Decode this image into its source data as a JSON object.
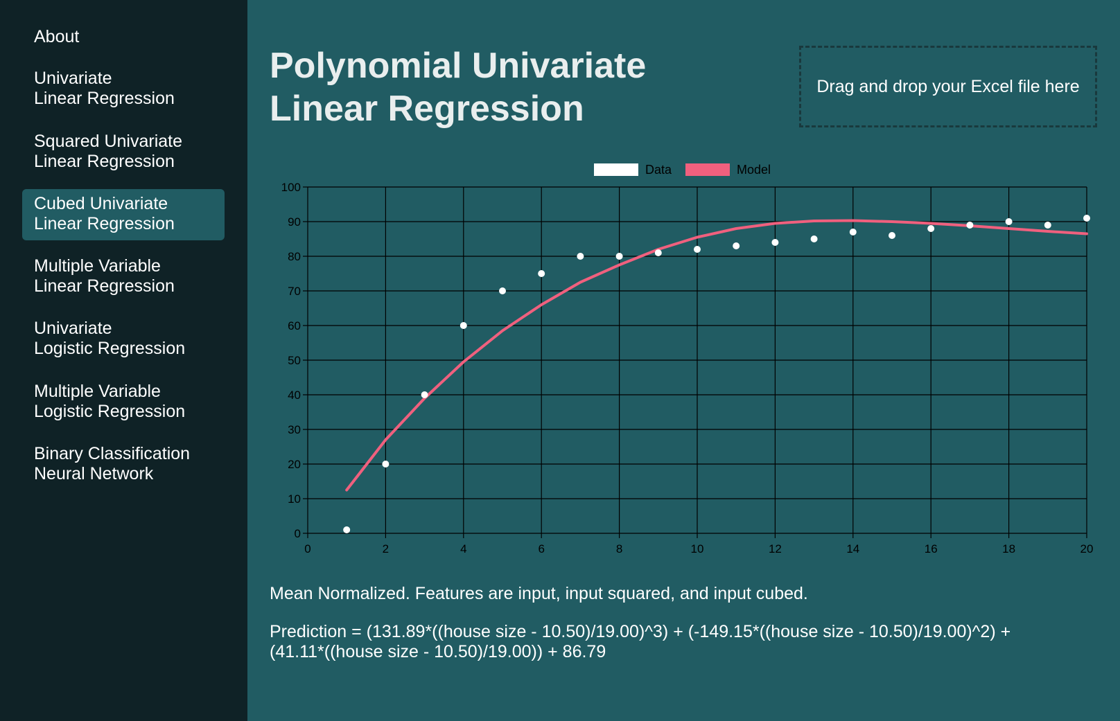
{
  "sidebar": {
    "items": [
      {
        "lines": [
          "About"
        ],
        "active": false
      },
      {
        "lines": [
          "Univariate",
          "Linear Regression"
        ],
        "active": false
      },
      {
        "lines": [
          "Squared Univariate",
          "Linear Regression"
        ],
        "active": false
      },
      {
        "lines": [
          "Cubed Univariate",
          "Linear Regression"
        ],
        "active": true
      },
      {
        "lines": [
          "Multiple Variable",
          "Linear Regression"
        ],
        "active": false
      },
      {
        "lines": [
          "Univariate",
          "Logistic Regression"
        ],
        "active": false
      },
      {
        "lines": [
          "Multiple Variable",
          "Logistic Regression"
        ],
        "active": false
      },
      {
        "lines": [
          "Binary Classification",
          "Neural Network"
        ],
        "active": false
      }
    ]
  },
  "main": {
    "title_lines": [
      "Polynomial Univariate",
      "Linear Regression"
    ],
    "dropzone_text": "Drag and drop your Excel file here",
    "description": "Mean Normalized. Features are input, input squared, and input cubed.",
    "formula_lines": [
      "Prediction = (131.89*((house size - 10.50)/19.00)^3) + (-149.15*((house size - 10.50)/19.00)^2) +",
      "(41.11*((house size - 10.50)/19.00)) + 86.79"
    ]
  },
  "colors": {
    "background": "#215c63",
    "sidebar": "#0f2226",
    "data_points": "#ffffff",
    "model_line": "#f0607e"
  },
  "chart_data": {
    "type": "scatter",
    "legend": [
      "Data",
      "Model"
    ],
    "legend_position": "top-center",
    "grid": true,
    "xlim": [
      0,
      20
    ],
    "ylim": [
      0,
      100
    ],
    "xticks": [
      0,
      2,
      4,
      6,
      8,
      10,
      12,
      14,
      16,
      18,
      20
    ],
    "yticks": [
      0,
      10,
      20,
      30,
      40,
      50,
      60,
      70,
      80,
      90,
      100
    ],
    "series": [
      {
        "name": "Data",
        "kind": "scatter",
        "color": "#ffffff",
        "x": [
          1,
          2,
          3,
          4,
          5,
          6,
          7,
          8,
          9,
          10,
          11,
          12,
          13,
          14,
          15,
          16,
          17,
          18,
          19,
          20
        ],
        "y": [
          1,
          20,
          40,
          60,
          70,
          75,
          80,
          80,
          81,
          82,
          83,
          84,
          85,
          87,
          86,
          88,
          89,
          90,
          89,
          91
        ]
      },
      {
        "name": "Model",
        "kind": "line",
        "color": "#f0607e",
        "x": [
          1,
          2,
          3,
          4,
          5,
          6,
          7,
          8,
          9,
          10,
          11,
          12,
          13,
          14,
          15,
          16,
          17,
          18,
          19,
          20
        ],
        "y": [
          12.5,
          27.0,
          39.0,
          49.5,
          58.5,
          66.0,
          72.5,
          77.5,
          82.0,
          85.5,
          88.0,
          89.5,
          90.2,
          90.3,
          90.0,
          89.5,
          88.8,
          88.0,
          87.2,
          86.5
        ]
      }
    ]
  }
}
